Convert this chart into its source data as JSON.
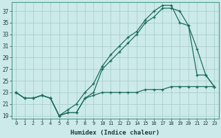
{
  "xlabel": "Humidex (Indice chaleur)",
  "bg_color": "#cceaea",
  "line_color": "#1a6b5a",
  "grid_color": "#aacece",
  "xlim": [
    -0.5,
    23.5
  ],
  "ylim": [
    18.5,
    38.5
  ],
  "yticks": [
    19,
    21,
    23,
    25,
    27,
    29,
    31,
    33,
    35,
    37
  ],
  "xticks": [
    0,
    1,
    2,
    3,
    4,
    5,
    6,
    7,
    8,
    9,
    10,
    11,
    12,
    13,
    14,
    15,
    16,
    17,
    18,
    19,
    20,
    21,
    22,
    23
  ],
  "series1": [
    23,
    22,
    22,
    22.5,
    22,
    19,
    19.5,
    19.5,
    22,
    22.5,
    23,
    23,
    23,
    23,
    23,
    23.5,
    23.5,
    23.5,
    24,
    24,
    24,
    24,
    24,
    24
  ],
  "series2": [
    23,
    22,
    22,
    22.5,
    22,
    19,
    19.5,
    19.5,
    22,
    23,
    27,
    28.5,
    30,
    31.5,
    33,
    35,
    36,
    37.5,
    37.5,
    37,
    34.5,
    30.5,
    26,
    24
  ],
  "series3": [
    23,
    22,
    22,
    22.5,
    22,
    19,
    20,
    21,
    23,
    24.5,
    27.5,
    29.5,
    31,
    32.5,
    33.5,
    35.5,
    37,
    38,
    38,
    35,
    34.5,
    26,
    26,
    24
  ]
}
